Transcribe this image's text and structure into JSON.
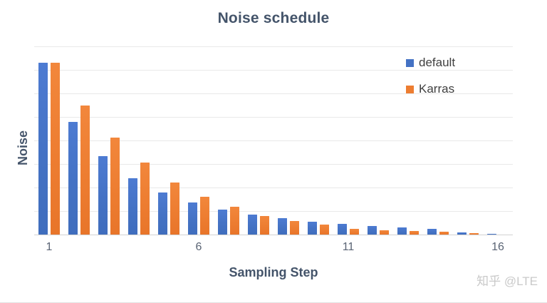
{
  "title": "Noise schedule",
  "watermark": "知乎 @LTE",
  "colors": {
    "title_text": "#44546a",
    "axis_label_text": "#44546a",
    "axis_tick_text": "#5a6474",
    "legend_text": "#3f3f3f",
    "gridline": "#e9e9e9",
    "baseline": "#d2d2d2",
    "default_series": "#4472c4",
    "karras_series": "#ed7d31",
    "watermark_text": "#c9c9c9"
  },
  "chart_data": {
    "type": "bar",
    "title": "Noise schedule",
    "xlabel": "Sampling Step",
    "ylabel": "Noise",
    "ylim": [
      0,
      16
    ],
    "gridline_step": 2,
    "grid": true,
    "y_tick_labels_shown": false,
    "legend_position": "top-right-inside",
    "categories": [
      "1",
      "2",
      "3",
      "4",
      "5",
      "6",
      "7",
      "8",
      "9",
      "10",
      "11",
      "12",
      "13",
      "14",
      "15",
      "16"
    ],
    "x_ticks_shown": [
      "1",
      "6",
      "11",
      "16"
    ],
    "series": [
      {
        "name": "default",
        "color": "#4472c4",
        "values": [
          14.6,
          9.6,
          6.65,
          4.8,
          3.6,
          2.7,
          2.15,
          1.68,
          1.4,
          1.1,
          0.93,
          0.72,
          0.62,
          0.5,
          0.16,
          0.05
        ]
      },
      {
        "name": "Karras",
        "color": "#ed7d31",
        "values": [
          14.6,
          11.0,
          8.25,
          6.1,
          4.45,
          3.2,
          2.35,
          1.58,
          1.15,
          0.86,
          0.5,
          0.38,
          0.29,
          0.22,
          0.12,
          0.03
        ]
      }
    ]
  }
}
